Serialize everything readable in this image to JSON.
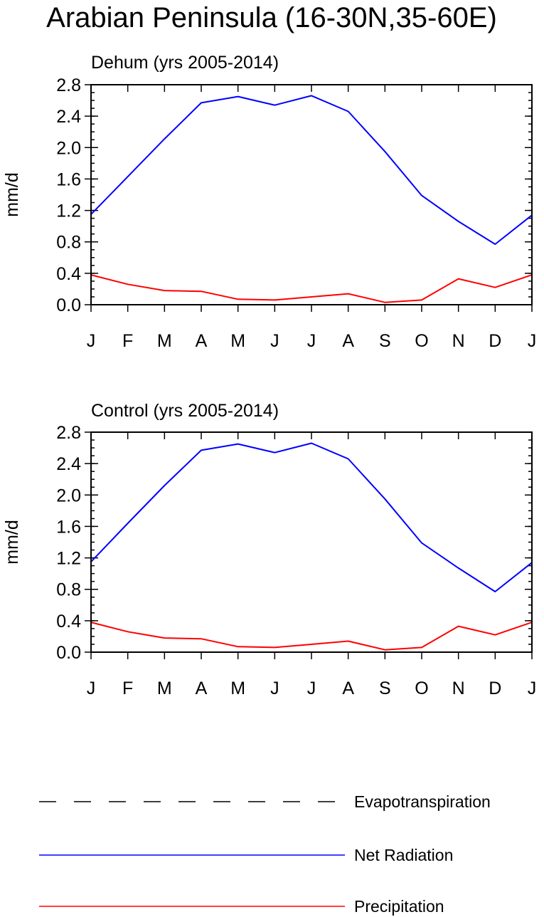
{
  "figure_title": "Arabian Peninsula (16-30N,35-60E)",
  "chart_data": [
    {
      "type": "line",
      "title": "Dehum (yrs 2005-2014)",
      "xlabel": "",
      "ylabel": "mm/d",
      "categories": [
        "J",
        "F",
        "M",
        "A",
        "M",
        "J",
        "J",
        "A",
        "S",
        "O",
        "N",
        "D",
        "J"
      ],
      "ylim": [
        0,
        2.8
      ],
      "yticks": [
        "0.0",
        "0.4",
        "0.8",
        "1.2",
        "1.6",
        "2.0",
        "2.4",
        "2.8"
      ],
      "grid": false,
      "series": [
        {
          "name": "Net Radiation",
          "color": "#0000ff",
          "dash": "solid",
          "values": [
            1.15,
            1.63,
            2.11,
            2.57,
            2.65,
            2.54,
            2.66,
            2.46,
            1.95,
            1.39,
            1.06,
            0.77,
            1.14
          ]
        },
        {
          "name": "Precipitation",
          "color": "#ff0000",
          "dash": "solid",
          "values": [
            0.38,
            0.26,
            0.18,
            0.17,
            0.07,
            0.06,
            0.1,
            0.14,
            0.03,
            0.06,
            0.33,
            0.22,
            0.38
          ]
        }
      ]
    },
    {
      "type": "line",
      "title": "Control (yrs 2005-2014)",
      "xlabel": "",
      "ylabel": "mm/d",
      "categories": [
        "J",
        "F",
        "M",
        "A",
        "M",
        "J",
        "J",
        "A",
        "S",
        "O",
        "N",
        "D",
        "J"
      ],
      "ylim": [
        0,
        2.8
      ],
      "yticks": [
        "0.0",
        "0.4",
        "0.8",
        "1.2",
        "1.6",
        "2.0",
        "2.4",
        "2.8"
      ],
      "grid": false,
      "series": [
        {
          "name": "Net Radiation",
          "color": "#0000ff",
          "dash": "solid",
          "values": [
            1.15,
            1.64,
            2.12,
            2.57,
            2.65,
            2.54,
            2.66,
            2.46,
            1.95,
            1.39,
            1.07,
            0.77,
            1.14
          ]
        },
        {
          "name": "Precipitation",
          "color": "#ff0000",
          "dash": "solid",
          "values": [
            0.38,
            0.26,
            0.18,
            0.17,
            0.07,
            0.06,
            0.1,
            0.14,
            0.03,
            0.06,
            0.33,
            0.22,
            0.38
          ]
        }
      ]
    }
  ],
  "legend": {
    "placement": "bottom",
    "items": [
      {
        "label": "Evapotranspiration",
        "color": "#000000",
        "dash": "dashed"
      },
      {
        "label": "Net Radiation",
        "color": "#0000ff",
        "dash": "solid"
      },
      {
        "label": "Precipitation",
        "color": "#ff0000",
        "dash": "solid"
      }
    ]
  }
}
